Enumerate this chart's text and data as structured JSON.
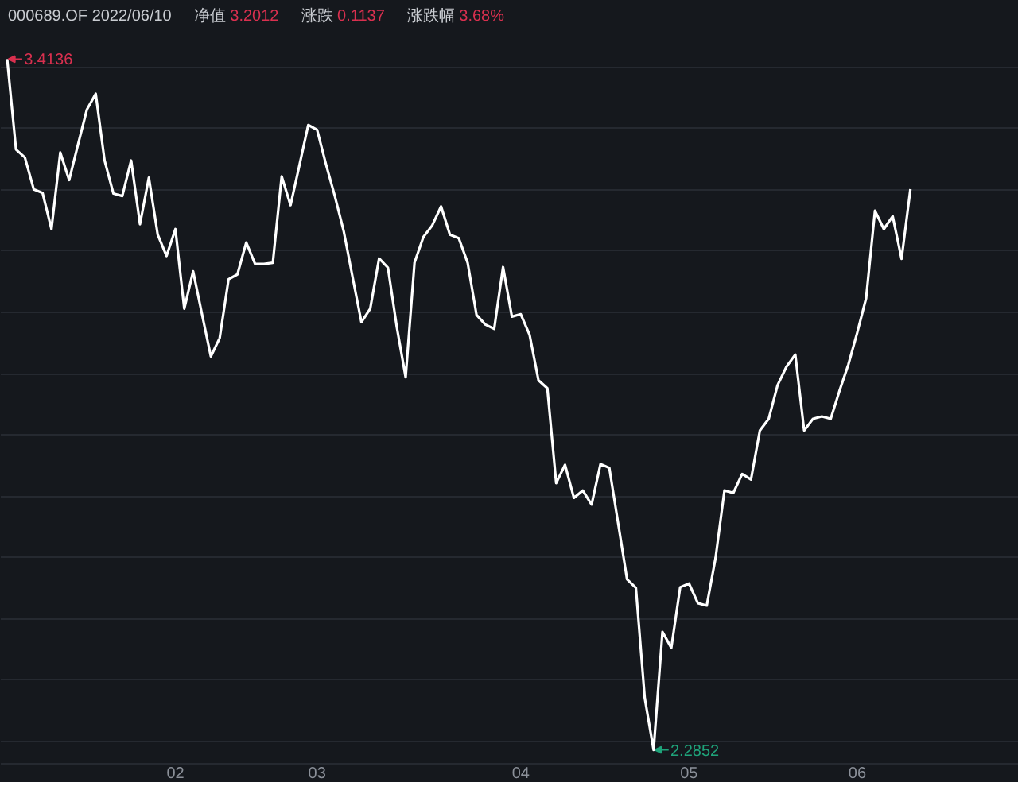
{
  "chart_data": {
    "type": "line",
    "title": "000689.OF 2022/06/10",
    "annotations": [
      "净值 3.2012",
      "涨跌 0.1137",
      "涨跌幅 3.68%"
    ],
    "categories": [
      null,
      null,
      null,
      null,
      null,
      null,
      null,
      null,
      null,
      null,
      null,
      null,
      null,
      null,
      null,
      null,
      null,
      null,
      null,
      "02",
      null,
      null,
      null,
      null,
      null,
      null,
      null,
      null,
      null,
      null,
      null,
      null,
      null,
      null,
      null,
      "03",
      null,
      null,
      null,
      null,
      null,
      null,
      null,
      null,
      null,
      null,
      null,
      null,
      null,
      null,
      null,
      null,
      null,
      null,
      null,
      null,
      null,
      null,
      "04",
      null,
      null,
      null,
      null,
      null,
      null,
      null,
      null,
      null,
      null,
      null,
      null,
      null,
      null,
      null,
      null,
      null,
      null,
      "05",
      null,
      null,
      null,
      null,
      null,
      null,
      null,
      null,
      null,
      null,
      null,
      null,
      null,
      null,
      null,
      null,
      null,
      null,
      "06",
      null,
      null,
      null,
      null,
      null,
      null
    ],
    "series": [
      {
        "color": "#ffffff",
        "values": [
          3.4136,
          3.266,
          3.253,
          3.201,
          3.195,
          3.136,
          3.261,
          3.216,
          3.274,
          3.331,
          3.357,
          3.248,
          3.194,
          3.19,
          3.248,
          3.144,
          3.22,
          3.127,
          3.092,
          3.136,
          3.006,
          3.067,
          2.997,
          2.928,
          2.958,
          3.054,
          3.062,
          3.114,
          3.079,
          3.079,
          3.081,
          3.222,
          3.175,
          3.24,
          3.306,
          3.298,
          3.242,
          3.19,
          3.133,
          3.058,
          2.984,
          3.006,
          3.088,
          3.073,
          2.976,
          2.894,
          3.081,
          3.123,
          3.142,
          3.173,
          3.127,
          3.121,
          3.081,
          2.996,
          2.98,
          2.973,
          3.074,
          2.993,
          2.997,
          2.963,
          2.889,
          2.876,
          2.721,
          2.751,
          2.697,
          2.709,
          2.686,
          2.752,
          2.746,
          2.655,
          2.564,
          2.55,
          2.37,
          2.2852,
          2.478,
          2.452,
          2.551,
          2.557,
          2.525,
          2.521,
          2.599,
          2.709,
          2.705,
          2.736,
          2.727,
          2.807,
          2.826,
          2.881,
          2.911,
          2.931,
          2.807,
          2.826,
          2.83,
          2.826,
          2.872,
          2.915,
          2.967,
          3.023,
          3.166,
          3.136,
          3.157,
          3.0875,
          3.2012
        ],
        "value_labels": [
          "3.4136",
          null,
          null,
          null,
          null,
          null,
          null,
          null,
          null,
          null,
          null,
          null,
          null,
          null,
          null,
          null,
          null,
          null,
          null,
          null,
          null,
          null,
          null,
          null,
          null,
          null,
          null,
          null,
          null,
          null,
          null,
          null,
          null,
          null,
          null,
          null,
          null,
          null,
          null,
          null,
          null,
          null,
          null,
          null,
          null,
          null,
          null,
          null,
          null,
          null,
          null,
          null,
          null,
          null,
          null,
          null,
          null,
          null,
          null,
          null,
          null,
          null,
          null,
          null,
          null,
          null,
          null,
          null,
          null,
          null,
          null,
          null,
          null,
          "2.2852",
          null,
          null,
          null,
          null,
          null,
          null,
          null,
          null,
          null,
          null,
          null,
          null,
          null,
          null,
          null,
          null,
          null,
          null,
          null,
          null,
          null,
          null,
          null,
          null,
          null,
          null,
          null,
          null,
          null
        ]
      }
    ],
    "yticks": [
      {
        "value": 2.3,
        "label": null
      },
      {
        "value": 2.4,
        "label": null
      },
      {
        "value": 2.5,
        "label": null
      },
      {
        "value": 2.6,
        "label": null
      },
      {
        "value": 2.7,
        "label": null
      },
      {
        "value": 2.8,
        "label": null
      },
      {
        "value": 2.9,
        "label": null
      },
      {
        "value": 3.0,
        "label": null
      },
      {
        "value": 3.1,
        "label": null
      },
      {
        "value": 3.2,
        "label": null
      },
      {
        "value": 3.3,
        "label": null
      },
      {
        "value": 3.4,
        "label": null
      }
    ],
    "grid": "y",
    "tick_labels": "x",
    "line_style": "solid"
  }
}
